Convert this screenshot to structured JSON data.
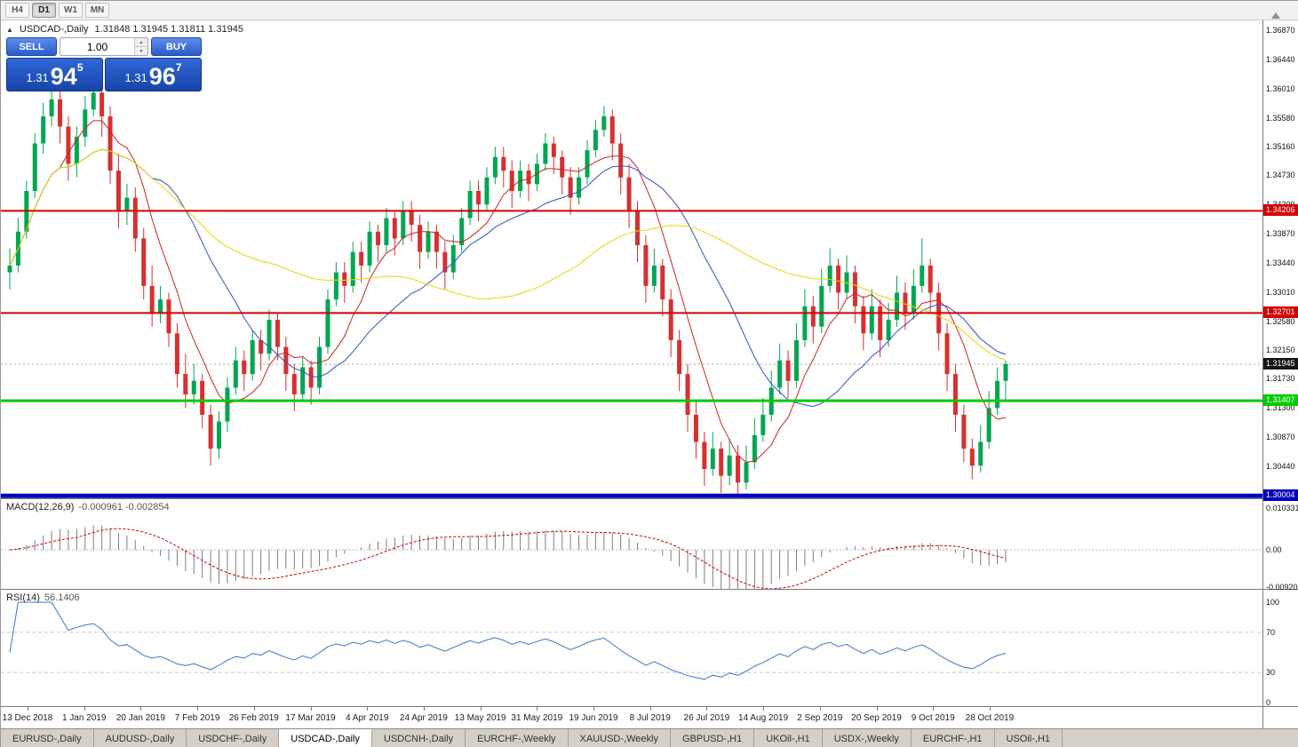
{
  "toolbar": {
    "periods": [
      "H4",
      "D1",
      "W1",
      "MN"
    ],
    "active_period": "D1"
  },
  "chart_header": {
    "collapse_icon": "▲",
    "title": "USDCAD-,Daily",
    "ohlc": "1.31848 1.31945 1.31811 1.31945"
  },
  "trade_panel": {
    "sell_label": "SELL",
    "buy_label": "BUY",
    "volume": "1.00",
    "sell_price": {
      "prefix": "1.31",
      "big": "94",
      "sup": "5"
    },
    "buy_price": {
      "prefix": "1.31",
      "big": "96",
      "sup": "7"
    }
  },
  "levels": [
    {
      "price": 1.34206,
      "label": "1.34206",
      "color": "#d40000",
      "thickness": 2
    },
    {
      "price": 1.32701,
      "label": "1.32701",
      "color": "#d40000",
      "thickness": 2
    },
    {
      "price": 1.31407,
      "label": "1.31407",
      "color": "#00cc00",
      "thickness": 3
    },
    {
      "price": 1.30004,
      "label": "1.30004",
      "color": "#0000bb",
      "thickness": 5
    }
  ],
  "current_price": {
    "price": 1.31945,
    "label": "1.31945"
  },
  "macd_panel": {
    "label": "MACD(12,26,9)",
    "values": "-0.000961 -0.002854",
    "axis_labels": [
      "0.010331",
      "0.00",
      "-0.009203"
    ]
  },
  "rsi_panel": {
    "label": "RSI(14)",
    "value": "56.1406",
    "axis_labels": [
      "100",
      "70",
      "30",
      "0"
    ],
    "level_lines": [
      70,
      30
    ]
  },
  "tabs": {
    "items": [
      "EURUSD-,Daily",
      "AUDUSD-,Daily",
      "USDCHF-,Daily",
      "USDCAD-,Daily",
      "USDCNH-,Daily",
      "EURCHF-,Weekly",
      "XAUUSD-,Weekly",
      "GBPUSD-,H1",
      "UKOil-,H1",
      "USDX-,Weekly",
      "EURCHF-,H1",
      "USOil-,H1"
    ],
    "active": "USDCAD-,Daily"
  },
  "chart_data": {
    "type": "candlestick",
    "symbol": "USDCAD",
    "period": "Daily",
    "ohlc_current": {
      "open": 1.31848,
      "high": 1.31945,
      "low": 1.31811,
      "close": 1.31945
    },
    "price_axis_labels": [
      "1.36870",
      "1.36440",
      "1.36010",
      "1.35580",
      "1.35160",
      "1.34730",
      "1.34300",
      "1.33870",
      "1.33440",
      "1.33010",
      "1.32580",
      "1.32150",
      "1.31730",
      "1.31300",
      "1.30870",
      "1.30440"
    ],
    "price_range": [
      1.30004,
      1.3687
    ],
    "date_labels": [
      "13 Dec 2018",
      "1 Jan 2019",
      "20 Jan 2019",
      "7 Feb 2019",
      "26 Feb 2019",
      "17 Mar 2019",
      "4 Apr 2019",
      "24 Apr 2019",
      "13 May 2019",
      "31 May 2019",
      "19 Jun 2019",
      "8 Jul 2019",
      "26 Jul 2019",
      "14 Aug 2019",
      "2 Sep 2019",
      "20 Sep 2019",
      "9 Oct 2019",
      "28 Oct 2019"
    ],
    "up_color": "#00a651",
    "down_color": "#d63030",
    "overlays": [
      {
        "name": "ma-fast",
        "color": "#cc2222",
        "period": 7
      },
      {
        "name": "ma-mid",
        "color": "#3050c8",
        "period": 18
      },
      {
        "name": "ma-slow",
        "color": "#e6d800",
        "period": 45
      }
    ],
    "macd": {
      "fast": 12,
      "slow": 26,
      "signal": 9,
      "histogram_color": "#7e7e7e",
      "signal_color": "#cc0000"
    },
    "rsi": {
      "period": 14,
      "color": "#3b78c8"
    },
    "candles": [
      [
        1.333,
        1.3365,
        1.3305,
        1.334
      ],
      [
        1.334,
        1.341,
        1.333,
        1.339
      ],
      [
        1.339,
        1.3465,
        1.338,
        1.345
      ],
      [
        1.345,
        1.3535,
        1.344,
        1.352
      ],
      [
        1.352,
        1.358,
        1.3505,
        1.356
      ],
      [
        1.356,
        1.3605,
        1.3545,
        1.3585
      ],
      [
        1.3585,
        1.36,
        1.352,
        1.3545
      ],
      [
        1.3545,
        1.356,
        1.3465,
        1.349
      ],
      [
        1.349,
        1.3545,
        1.347,
        1.353
      ],
      [
        1.353,
        1.359,
        1.3515,
        1.357
      ],
      [
        1.357,
        1.362,
        1.356,
        1.3595
      ],
      [
        1.3595,
        1.361,
        1.353,
        1.356
      ],
      [
        1.356,
        1.3575,
        1.346,
        1.348
      ],
      [
        1.348,
        1.3505,
        1.3395,
        1.342
      ],
      [
        1.342,
        1.346,
        1.34,
        1.344
      ],
      [
        1.344,
        1.3455,
        1.336,
        1.338
      ],
      [
        1.338,
        1.3395,
        1.329,
        1.331
      ],
      [
        1.331,
        1.334,
        1.325,
        1.327
      ],
      [
        1.327,
        1.331,
        1.3255,
        1.329
      ],
      [
        1.329,
        1.33,
        1.322,
        1.324
      ],
      [
        1.324,
        1.3255,
        1.316,
        1.318
      ],
      [
        1.318,
        1.321,
        1.313,
        1.315
      ],
      [
        1.315,
        1.3195,
        1.3135,
        1.317
      ],
      [
        1.317,
        1.318,
        1.31,
        1.312
      ],
      [
        1.312,
        1.3135,
        1.3045,
        1.307
      ],
      [
        1.307,
        1.3125,
        1.3055,
        1.311
      ],
      [
        1.311,
        1.3175,
        1.3095,
        1.316
      ],
      [
        1.316,
        1.322,
        1.315,
        1.32
      ],
      [
        1.32,
        1.3215,
        1.3155,
        1.318
      ],
      [
        1.318,
        1.3245,
        1.317,
        1.323
      ],
      [
        1.323,
        1.3245,
        1.3185,
        1.321
      ],
      [
        1.321,
        1.3275,
        1.32,
        1.326
      ],
      [
        1.326,
        1.327,
        1.32,
        1.322
      ],
      [
        1.322,
        1.3235,
        1.3155,
        1.318
      ],
      [
        1.318,
        1.3195,
        1.3125,
        1.315
      ],
      [
        1.315,
        1.3205,
        1.314,
        1.319
      ],
      [
        1.319,
        1.32,
        1.3135,
        1.316
      ],
      [
        1.316,
        1.3235,
        1.315,
        1.322
      ],
      [
        1.322,
        1.3305,
        1.321,
        1.329
      ],
      [
        1.329,
        1.3345,
        1.328,
        1.333
      ],
      [
        1.333,
        1.3345,
        1.3285,
        1.331
      ],
      [
        1.331,
        1.3375,
        1.33,
        1.336
      ],
      [
        1.336,
        1.3375,
        1.3315,
        1.334
      ],
      [
        1.334,
        1.3405,
        1.333,
        1.339
      ],
      [
        1.339,
        1.34,
        1.3345,
        1.337
      ],
      [
        1.337,
        1.3425,
        1.336,
        1.341
      ],
      [
        1.341,
        1.342,
        1.3355,
        1.338
      ],
      [
        1.338,
        1.3435,
        1.337,
        1.342
      ],
      [
        1.342,
        1.3435,
        1.3375,
        1.34
      ],
      [
        1.34,
        1.3415,
        1.3335,
        1.336
      ],
      [
        1.336,
        1.3405,
        1.335,
        1.339
      ],
      [
        1.339,
        1.34,
        1.3335,
        1.336
      ],
      [
        1.336,
        1.3375,
        1.3305,
        1.333
      ],
      [
        1.333,
        1.3385,
        1.332,
        1.337
      ],
      [
        1.337,
        1.3425,
        1.336,
        1.341
      ],
      [
        1.341,
        1.3465,
        1.34,
        1.345
      ],
      [
        1.345,
        1.3465,
        1.3405,
        1.343
      ],
      [
        1.343,
        1.3485,
        1.342,
        1.347
      ],
      [
        1.347,
        1.3515,
        1.346,
        1.35
      ],
      [
        1.35,
        1.3515,
        1.3455,
        1.348
      ],
      [
        1.348,
        1.3495,
        1.3425,
        1.345
      ],
      [
        1.345,
        1.3495,
        1.344,
        1.348
      ],
      [
        1.348,
        1.349,
        1.3435,
        1.346
      ],
      [
        1.346,
        1.3505,
        1.345,
        1.349
      ],
      [
        1.349,
        1.3535,
        1.348,
        1.352
      ],
      [
        1.352,
        1.353,
        1.3475,
        1.35
      ],
      [
        1.35,
        1.351,
        1.3445,
        1.347
      ],
      [
        1.347,
        1.3485,
        1.3415,
        1.344
      ],
      [
        1.344,
        1.3485,
        1.343,
        1.347
      ],
      [
        1.347,
        1.3525,
        1.346,
        1.351
      ],
      [
        1.351,
        1.3555,
        1.35,
        1.354
      ],
      [
        1.354,
        1.3575,
        1.353,
        1.356
      ],
      [
        1.356,
        1.357,
        1.3495,
        1.352
      ],
      [
        1.352,
        1.3535,
        1.3445,
        1.347
      ],
      [
        1.347,
        1.349,
        1.3395,
        1.342
      ],
      [
        1.342,
        1.3435,
        1.3345,
        1.337
      ],
      [
        1.337,
        1.3385,
        1.3285,
        1.331
      ],
      [
        1.331,
        1.3365,
        1.33,
        1.334
      ],
      [
        1.334,
        1.335,
        1.3265,
        1.329
      ],
      [
        1.329,
        1.3305,
        1.3205,
        1.323
      ],
      [
        1.323,
        1.3245,
        1.3155,
        1.318
      ],
      [
        1.318,
        1.3195,
        1.3095,
        1.312
      ],
      [
        1.312,
        1.314,
        1.3055,
        1.308
      ],
      [
        1.308,
        1.3095,
        1.3015,
        1.304
      ],
      [
        1.304,
        1.3095,
        1.303,
        1.307
      ],
      [
        1.307,
        1.308,
        1.3005,
        1.303
      ],
      [
        1.303,
        1.3085,
        1.3016,
        1.306
      ],
      [
        1.306,
        1.3075,
        1.3,
        1.302
      ],
      [
        1.302,
        1.3075,
        1.301,
        1.305
      ],
      [
        1.305,
        1.3115,
        1.304,
        1.309
      ],
      [
        1.309,
        1.3145,
        1.308,
        1.312
      ],
      [
        1.312,
        1.3185,
        1.311,
        1.316
      ],
      [
        1.316,
        1.3225,
        1.315,
        1.32
      ],
      [
        1.32,
        1.3215,
        1.3145,
        1.317
      ],
      [
        1.317,
        1.3255,
        1.316,
        1.323
      ],
      [
        1.323,
        1.3305,
        1.322,
        1.328
      ],
      [
        1.328,
        1.3295,
        1.3225,
        1.325
      ],
      [
        1.325,
        1.3335,
        1.324,
        1.331
      ],
      [
        1.331,
        1.3365,
        1.33,
        1.334
      ],
      [
        1.334,
        1.335,
        1.3275,
        1.33
      ],
      [
        1.33,
        1.3355,
        1.329,
        1.333
      ],
      [
        1.333,
        1.334,
        1.3255,
        1.328
      ],
      [
        1.328,
        1.3295,
        1.3215,
        1.324
      ],
      [
        1.324,
        1.3305,
        1.323,
        1.328
      ],
      [
        1.328,
        1.329,
        1.3205,
        1.323
      ],
      [
        1.323,
        1.3285,
        1.322,
        1.326
      ],
      [
        1.326,
        1.3325,
        1.325,
        1.33
      ],
      [
        1.33,
        1.3315,
        1.3245,
        1.327
      ],
      [
        1.327,
        1.3335,
        1.326,
        1.331
      ],
      [
        1.331,
        1.338,
        1.33,
        1.334
      ],
      [
        1.334,
        1.335,
        1.327,
        1.33
      ],
      [
        1.33,
        1.3315,
        1.3215,
        1.324
      ],
      [
        1.324,
        1.3255,
        1.3155,
        1.318
      ],
      [
        1.318,
        1.3195,
        1.3095,
        1.312
      ],
      [
        1.312,
        1.3135,
        1.305,
        1.307
      ],
      [
        1.307,
        1.3085,
        1.3025,
        1.3045
      ],
      [
        1.3045,
        1.3105,
        1.3035,
        1.308
      ],
      [
        1.308,
        1.3155,
        1.307,
        1.313
      ],
      [
        1.313,
        1.319,
        1.312,
        1.317
      ],
      [
        1.317,
        1.32,
        1.314,
        1.3195
      ]
    ]
  }
}
